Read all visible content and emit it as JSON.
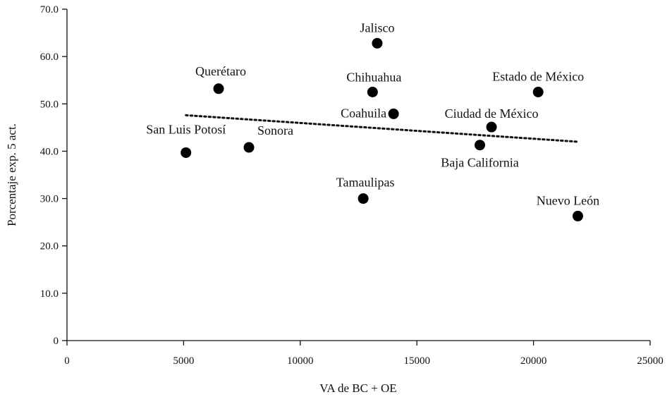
{
  "chart_data": {
    "type": "scatter",
    "xlabel": "VA de BC + OE",
    "ylabel": "Porcentaje exp. 5 act.",
    "xlim": [
      0,
      25000
    ],
    "ylim": [
      0,
      70
    ],
    "x_ticks": [
      0,
      5000,
      10000,
      15000,
      20000,
      25000
    ],
    "x_tick_labels": [
      "0",
      "5000",
      "10000",
      "15000",
      "20000",
      "25000"
    ],
    "y_ticks": [
      0,
      10,
      20,
      30,
      40,
      50,
      60,
      70
    ],
    "y_tick_labels": [
      "0",
      "10.0",
      "20.0",
      "30.0",
      "40.0",
      "50.0",
      "60.0",
      "70.0"
    ],
    "grid": false,
    "points": [
      {
        "label": "San Luis Potosí",
        "x": 5100,
        "y": 39.7
      },
      {
        "label": "Querétaro",
        "x": 6500,
        "y": 53.2
      },
      {
        "label": "Sonora",
        "x": 7800,
        "y": 40.8
      },
      {
        "label": "Jalisco",
        "x": 13300,
        "y": 62.8
      },
      {
        "label": "Chihuahua",
        "x": 13100,
        "y": 52.5
      },
      {
        "label": "Coahuila",
        "x": 14000,
        "y": 47.9
      },
      {
        "label": "Tamaulipas",
        "x": 12700,
        "y": 30.0
      },
      {
        "label": "Estado de México",
        "x": 20200,
        "y": 52.5
      },
      {
        "label": "Ciudad de México",
        "x": 18200,
        "y": 45.1
      },
      {
        "label": "Baja California",
        "x": 17700,
        "y": 41.3
      },
      {
        "label": "Nuevo León",
        "x": 21900,
        "y": 26.3
      }
    ],
    "trendline": {
      "style": "dotted",
      "x": [
        5100,
        21900
      ],
      "y": [
        47.6,
        42.0
      ]
    }
  }
}
